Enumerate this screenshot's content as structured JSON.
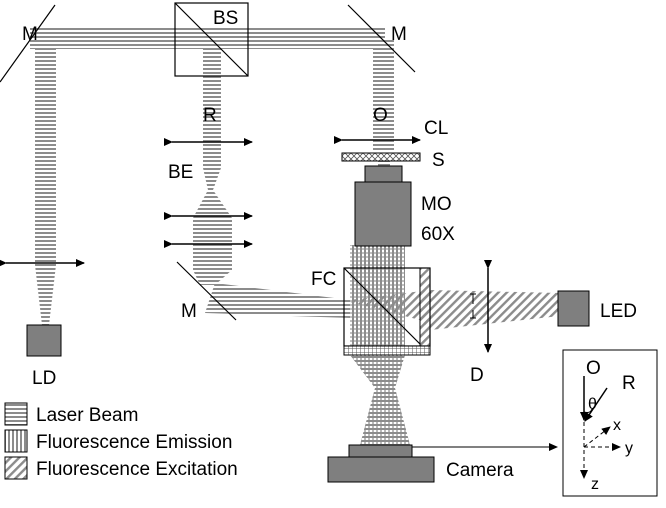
{
  "labels": {
    "mirror_left": "M",
    "mirror_right": "M",
    "mirror_lower": "M",
    "beam_splitter": "BS",
    "reference_beam": "R",
    "object_beam": "O",
    "beam_expander": "BE",
    "condenser_lens": "CL",
    "sample": "S",
    "objective_line1": "MO",
    "objective_line2": "60X",
    "filter_cube": "FC",
    "led": "LED",
    "diaphragm": "D",
    "laser_diode": "LD",
    "camera": "Camera"
  },
  "legend": {
    "laser_beam": "Laser Beam",
    "fluorescence_emission": "Fluorescence Emission",
    "fluorescence_excitation": "Fluorescence Excitation"
  },
  "inset": {
    "O": "O",
    "R": "R",
    "theta": "θ",
    "x": "x",
    "y": "y",
    "z": "z"
  },
  "colors": {
    "component_gray": "#7f7f7f",
    "line": "#000000",
    "hatch": "#8c8c8c"
  }
}
